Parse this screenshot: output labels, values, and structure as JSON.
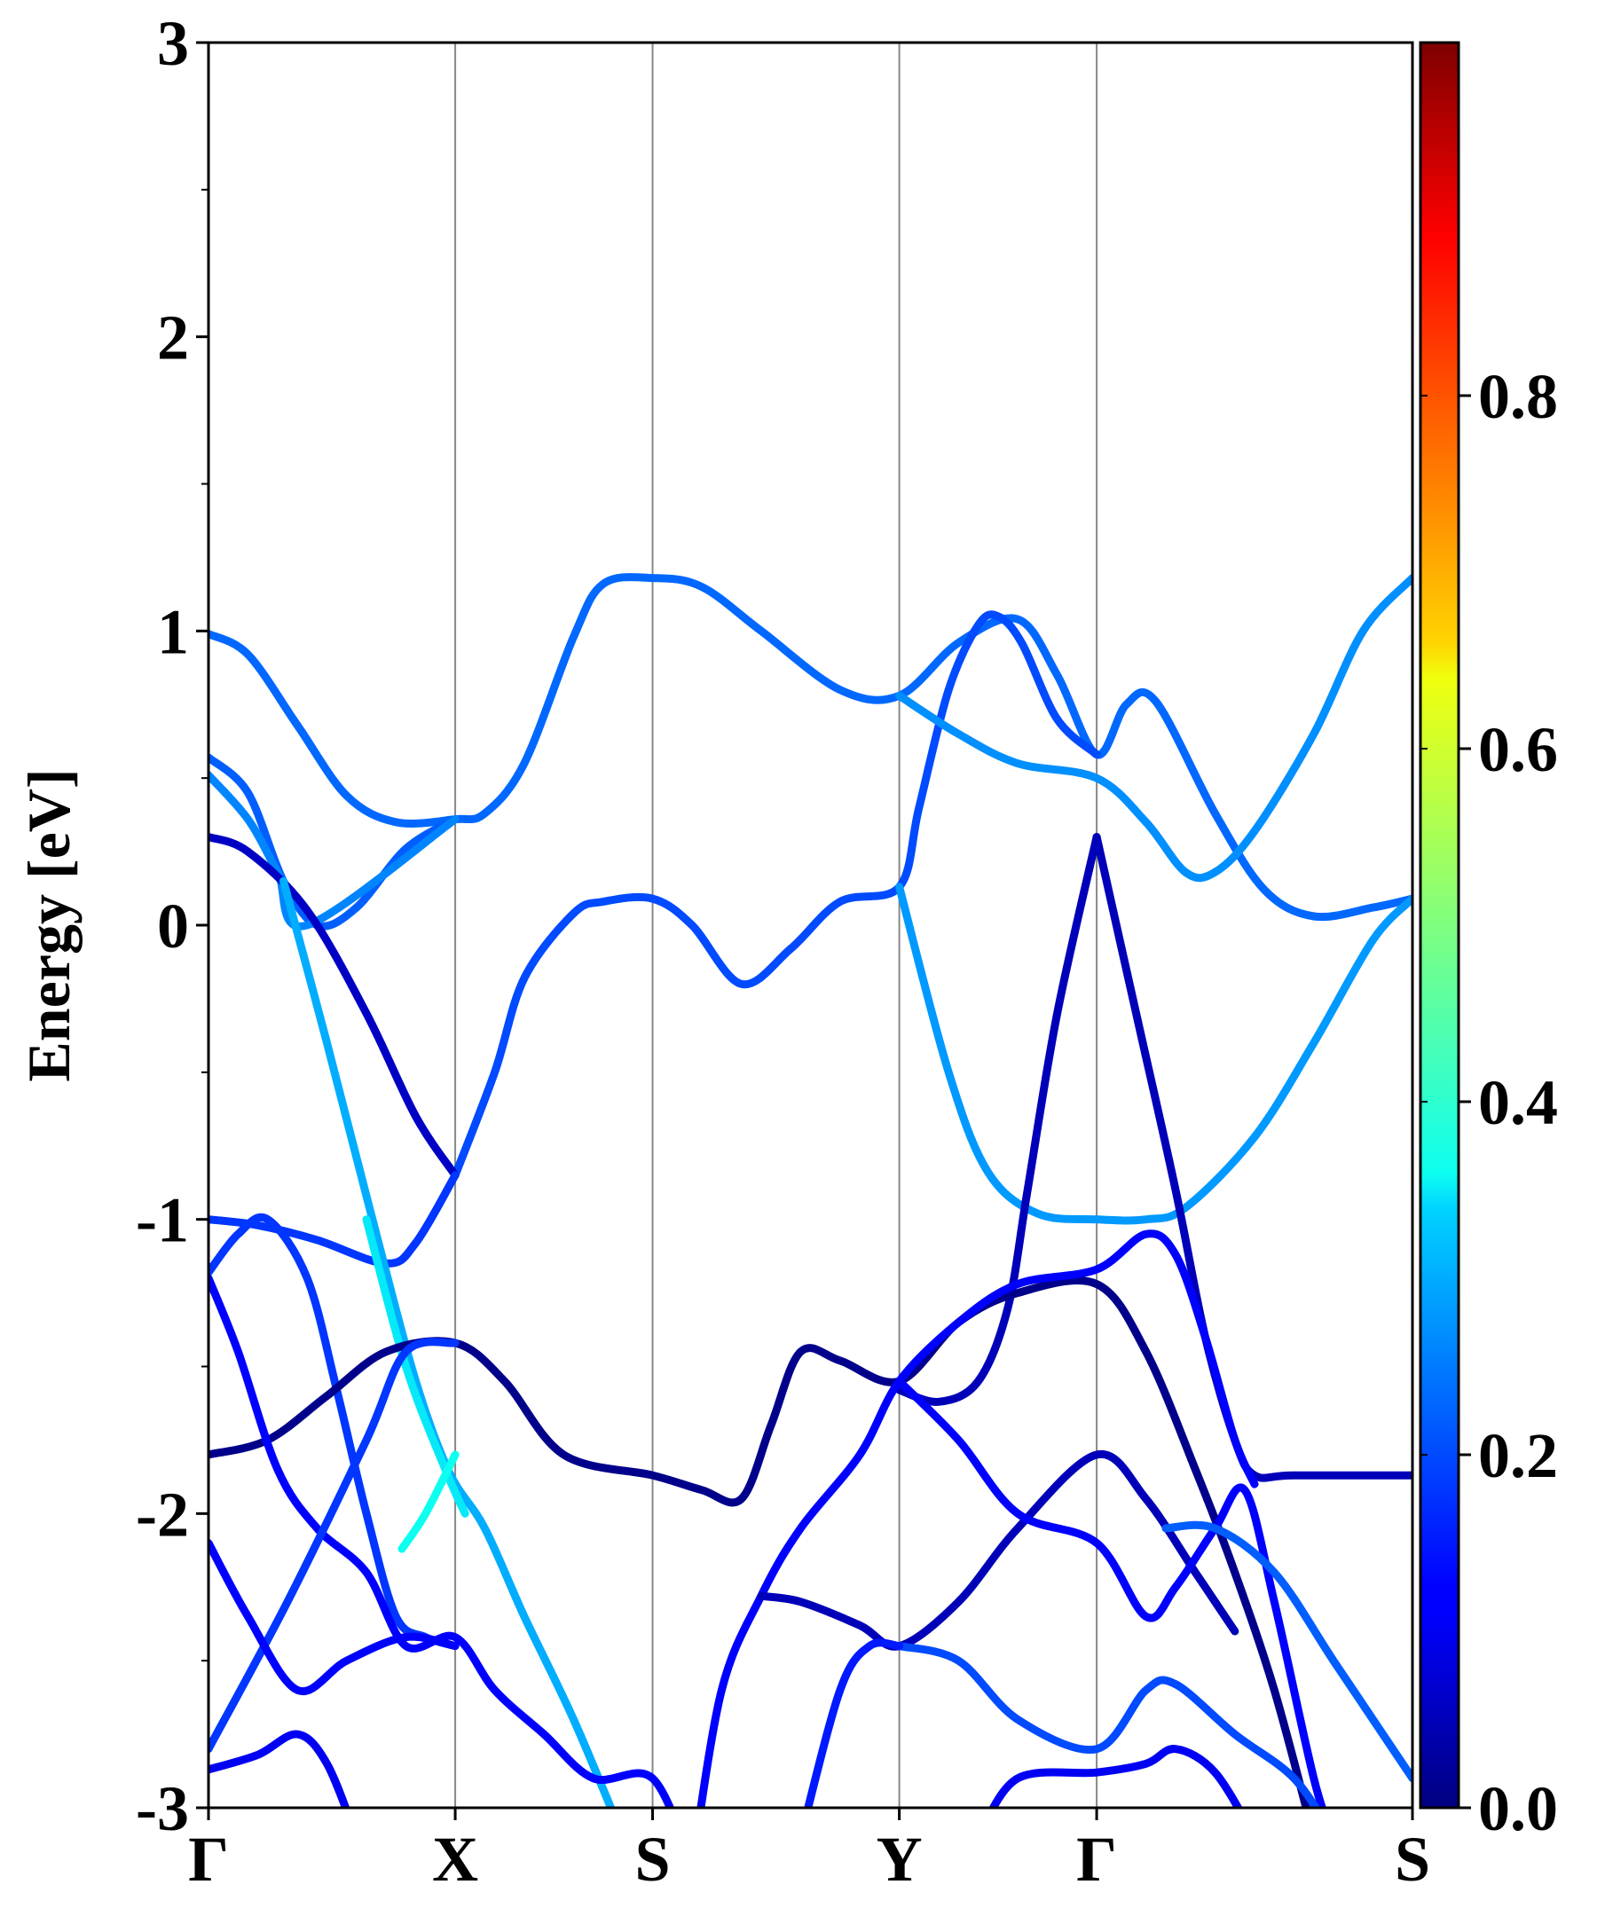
{
  "chart_data": {
    "type": "line",
    "title": "",
    "xlabel": "",
    "ylabel": "Energy [eV]",
    "ylim": [
      -3,
      3
    ],
    "y_ticks": [
      "-3",
      "-2",
      "-1",
      "0",
      "1",
      "2",
      "3"
    ],
    "y_tick_values": [
      -3,
      -2,
      -1,
      0,
      1,
      2,
      3
    ],
    "y_minor_ticks": [
      -2.5,
      -1.5,
      -0.5,
      0.5,
      1.5,
      2.5
    ],
    "kpoint_labels": [
      "Γ",
      "X",
      "S",
      "Y",
      "Γ",
      "S"
    ],
    "kpoint_positions": [
      0,
      1.25,
      2.25,
      3.5,
      4.5,
      6.1
    ],
    "colorbar": {
      "colormap": "jet",
      "range": [
        0,
        1
      ],
      "ticks": [
        "0.0",
        "0.2",
        "0.4",
        "0.6",
        "0.8"
      ],
      "tick_values": [
        0.0,
        0.2,
        0.4,
        0.6,
        0.8
      ]
    },
    "bands": [
      {
        "color_value": 0.23,
        "points": [
          [
            0,
            0.99
          ],
          [
            0.2,
            0.92
          ],
          [
            0.45,
            0.68
          ],
          [
            0.7,
            0.44
          ],
          [
            0.95,
            0.35
          ],
          [
            1.25,
            0.36
          ],
          [
            1.4,
            0.38
          ],
          [
            1.6,
            0.55
          ],
          [
            1.85,
            0.98
          ],
          [
            2.0,
            1.16
          ],
          [
            2.25,
            1.18
          ],
          [
            2.5,
            1.15
          ],
          [
            2.8,
            1.0
          ],
          [
            3.2,
            0.8
          ],
          [
            3.5,
            0.78
          ],
          [
            3.8,
            0.96
          ],
          [
            4.1,
            1.04
          ],
          [
            4.3,
            0.85
          ],
          [
            4.5,
            0.58
          ],
          [
            4.65,
            0.75
          ],
          [
            4.8,
            0.76
          ],
          [
            5.1,
            0.38
          ],
          [
            5.35,
            0.12
          ],
          [
            5.6,
            0.03
          ],
          [
            5.9,
            0.06
          ],
          [
            6.1,
            0.09
          ]
        ]
      },
      {
        "color_value": 0.22,
        "points": [
          [
            0,
            0.57
          ],
          [
            0.2,
            0.45
          ],
          [
            0.38,
            0.15
          ],
          [
            0.55,
            0.0
          ],
          [
            0.75,
            0.06
          ],
          [
            1.0,
            0.26
          ],
          [
            1.25,
            0.36
          ]
        ]
      },
      {
        "color_value": 0.26,
        "points": [
          [
            0,
            0.51
          ],
          [
            0.2,
            0.36
          ],
          [
            0.35,
            0.18
          ],
          [
            0.5,
            0.0
          ],
          [
            1.25,
            0.36
          ]
        ]
      },
      {
        "color_value": 0.2,
        "points": [
          [
            1.25,
            -0.85
          ],
          [
            1.45,
            -0.5
          ],
          [
            1.6,
            -0.18
          ],
          [
            1.85,
            0.04
          ],
          [
            2.0,
            0.08
          ],
          [
            2.25,
            0.09
          ],
          [
            2.45,
            0.0
          ],
          [
            2.7,
            -0.2
          ],
          [
            2.95,
            -0.08
          ],
          [
            3.2,
            0.08
          ],
          [
            3.5,
            0.13
          ],
          [
            3.6,
            0.4
          ],
          [
            3.75,
            0.8
          ],
          [
            3.9,
            1.02
          ],
          [
            4.0,
            1.05
          ],
          [
            4.12,
            0.96
          ],
          [
            4.3,
            0.7
          ],
          [
            4.5,
            0.58
          ]
        ]
      },
      {
        "color_value": 0.27,
        "points": [
          [
            3.5,
            0.78
          ],
          [
            3.8,
            0.65
          ],
          [
            4.1,
            0.55
          ],
          [
            4.5,
            0.5
          ],
          [
            4.75,
            0.35
          ],
          [
            4.95,
            0.18
          ],
          [
            5.1,
            0.18
          ],
          [
            5.3,
            0.32
          ],
          [
            5.6,
            0.65
          ],
          [
            5.85,
            1.0
          ],
          [
            6.1,
            1.18
          ]
        ]
      },
      {
        "color_value": 0.28,
        "points": [
          [
            3.5,
            0.13
          ],
          [
            3.75,
            -0.5
          ],
          [
            3.95,
            -0.84
          ],
          [
            4.2,
            -0.98
          ],
          [
            4.5,
            -1.0
          ],
          [
            4.75,
            -1.0
          ],
          [
            4.95,
            -0.96
          ],
          [
            5.3,
            -0.72
          ],
          [
            5.6,
            -0.4
          ],
          [
            5.9,
            -0.05
          ],
          [
            6.1,
            0.09
          ]
        ]
      },
      {
        "color_value": 0.06,
        "points": [
          [
            0,
            0.3
          ],
          [
            0.2,
            0.25
          ],
          [
            0.5,
            0.05
          ],
          [
            0.8,
            -0.3
          ],
          [
            1.05,
            -0.65
          ],
          [
            1.25,
            -0.85
          ]
        ]
      },
      {
        "color_value": 0.18,
        "points": [
          [
            0,
            -1.0
          ],
          [
            0.25,
            -1.02
          ],
          [
            0.55,
            -1.07
          ],
          [
            0.9,
            -1.15
          ],
          [
            1.05,
            -1.08
          ],
          [
            1.25,
            -0.85
          ]
        ]
      },
      {
        "color_value": 0.3,
        "points": [
          [
            0.38,
            0.15
          ],
          [
            0.6,
            -0.4
          ],
          [
            0.85,
            -1.05
          ],
          [
            1.05,
            -1.55
          ],
          [
            1.22,
            -1.86
          ],
          [
            1.4,
            -2.05
          ],
          [
            1.6,
            -2.35
          ],
          [
            1.85,
            -2.7
          ],
          [
            2.1,
            -3.1
          ]
        ]
      },
      {
        "color_value": 0.35,
        "points": [
          [
            0.8,
            -1.0
          ],
          [
            1.0,
            -1.5
          ],
          [
            1.2,
            -1.85
          ],
          [
            1.3,
            -2.0
          ]
        ]
      },
      {
        "color_value": 0.36,
        "points": [
          [
            0.98,
            -2.12
          ],
          [
            1.1,
            -2.0
          ],
          [
            1.25,
            -1.8
          ]
        ]
      },
      {
        "color_value": 0.05,
        "points": [
          [
            4.5,
            0.3
          ],
          [
            4.3,
            -0.3
          ],
          [
            4.15,
            -0.9
          ],
          [
            4.05,
            -1.3
          ],
          [
            3.9,
            -1.55
          ],
          [
            3.7,
            -1.62
          ],
          [
            3.5,
            -1.58
          ]
        ]
      },
      {
        "color_value": 0.05,
        "points": [
          [
            4.5,
            0.3
          ],
          [
            4.7,
            -0.3
          ],
          [
            4.9,
            -0.9
          ],
          [
            5.05,
            -1.4
          ],
          [
            5.2,
            -1.75
          ],
          [
            5.3,
            -1.87
          ],
          [
            5.5,
            -1.87
          ],
          [
            6.1,
            -1.87
          ]
        ]
      },
      {
        "color_value": 0.18,
        "points": [
          [
            0,
            -1.18
          ],
          [
            0.15,
            -1.05
          ],
          [
            0.3,
            -1.0
          ],
          [
            0.5,
            -1.2
          ],
          [
            0.65,
            -1.58
          ],
          [
            0.8,
            -2.0
          ],
          [
            0.95,
            -2.35
          ],
          [
            1.1,
            -2.42
          ],
          [
            1.25,
            -2.45
          ]
        ]
      },
      {
        "color_value": 0.01,
        "points": [
          [
            0,
            -1.8
          ],
          [
            0.3,
            -1.75
          ],
          [
            0.6,
            -1.6
          ],
          [
            0.9,
            -1.45
          ],
          [
            1.25,
            -1.42
          ],
          [
            1.5,
            -1.55
          ],
          [
            1.8,
            -1.8
          ],
          [
            2.25,
            -1.87
          ],
          [
            2.5,
            -1.92
          ],
          [
            2.7,
            -1.95
          ],
          [
            2.85,
            -1.7
          ],
          [
            3.0,
            -1.45
          ],
          [
            3.2,
            -1.48
          ],
          [
            3.5,
            -1.55
          ],
          [
            3.8,
            -1.35
          ],
          [
            4.1,
            -1.25
          ],
          [
            4.5,
            -1.22
          ],
          [
            4.75,
            -1.45
          ],
          [
            5.0,
            -1.85
          ],
          [
            5.2,
            -2.2
          ],
          [
            5.4,
            -2.6
          ],
          [
            5.6,
            -3.1
          ]
        ]
      },
      {
        "color_value": 0.12,
        "points": [
          [
            0,
            -1.2
          ],
          [
            0.15,
            -1.45
          ],
          [
            0.35,
            -1.85
          ],
          [
            0.55,
            -2.05
          ],
          [
            0.8,
            -2.2
          ],
          [
            1.0,
            -2.45
          ],
          [
            1.25,
            -2.42
          ],
          [
            1.45,
            -2.6
          ],
          [
            1.7,
            -2.75
          ],
          [
            1.95,
            -2.9
          ],
          [
            2.25,
            -2.9
          ],
          [
            2.45,
            -3.2
          ]
        ]
      },
      {
        "color_value": 0.18,
        "points": [
          [
            0,
            -2.8
          ],
          [
            0.4,
            -2.3
          ],
          [
            0.8,
            -1.75
          ],
          [
            1.0,
            -1.45
          ],
          [
            1.25,
            -1.42
          ]
        ]
      },
      {
        "color_value": 0.12,
        "points": [
          [
            0,
            -2.1
          ],
          [
            0.2,
            -2.35
          ],
          [
            0.45,
            -2.6
          ],
          [
            0.7,
            -2.5
          ],
          [
            1.0,
            -2.42
          ],
          [
            1.25,
            -2.45
          ]
        ]
      },
      {
        "color_value": 0.12,
        "points": [
          [
            2.45,
            -3.2
          ],
          [
            2.6,
            -2.6
          ],
          [
            2.8,
            -2.28
          ],
          [
            3.0,
            -2.05
          ],
          [
            3.3,
            -1.8
          ],
          [
            3.5,
            -1.55
          ],
          [
            3.8,
            -1.35
          ],
          [
            4.1,
            -1.22
          ],
          [
            4.5,
            -1.17
          ],
          [
            4.75,
            -1.05
          ],
          [
            4.9,
            -1.12
          ],
          [
            5.05,
            -1.4
          ],
          [
            5.2,
            -1.75
          ],
          [
            5.3,
            -1.9
          ]
        ]
      },
      {
        "color_value": 0.05,
        "points": [
          [
            2.8,
            -2.28
          ],
          [
            3.0,
            -2.3
          ],
          [
            3.3,
            -2.38
          ],
          [
            3.5,
            -2.45
          ],
          [
            3.8,
            -2.3
          ],
          [
            4.1,
            -2.05
          ],
          [
            4.5,
            -1.8
          ],
          [
            4.75,
            -1.95
          ],
          [
            5.0,
            -2.2
          ],
          [
            5.2,
            -2.4
          ]
        ]
      },
      {
        "color_value": 0.12,
        "points": [
          [
            3.5,
            -1.55
          ],
          [
            3.8,
            -1.75
          ],
          [
            4.1,
            -2.0
          ],
          [
            4.5,
            -2.1
          ],
          [
            4.75,
            -2.35
          ],
          [
            4.9,
            -2.25
          ],
          [
            5.1,
            -2.05
          ],
          [
            5.25,
            -1.92
          ],
          [
            5.4,
            -2.3
          ],
          [
            5.6,
            -2.9
          ],
          [
            5.7,
            -3.1
          ]
        ]
      },
      {
        "color_value": 0.2,
        "points": [
          [
            3.5,
            -2.45
          ],
          [
            3.8,
            -2.5
          ],
          [
            4.1,
            -2.7
          ],
          [
            4.5,
            -2.8
          ],
          [
            4.75,
            -2.6
          ],
          [
            4.9,
            -2.58
          ],
          [
            5.2,
            -2.75
          ],
          [
            5.5,
            -2.9
          ],
          [
            5.7,
            -3.1
          ]
        ]
      },
      {
        "color_value": 0.15,
        "points": [
          [
            3.0,
            -3.1
          ],
          [
            3.2,
            -2.6
          ],
          [
            3.35,
            -2.45
          ],
          [
            3.5,
            -2.45
          ]
        ]
      },
      {
        "color_value": 0.22,
        "points": [
          [
            4.85,
            -2.05
          ],
          [
            5.1,
            -2.05
          ],
          [
            5.4,
            -2.2
          ],
          [
            5.7,
            -2.5
          ],
          [
            6.0,
            -2.8
          ],
          [
            6.1,
            -2.9
          ]
        ]
      },
      {
        "color_value": 0.1,
        "points": [
          [
            0,
            -2.87
          ],
          [
            0.25,
            -2.82
          ],
          [
            0.45,
            -2.75
          ],
          [
            0.6,
            -2.85
          ],
          [
            0.75,
            -3.1
          ]
        ]
      },
      {
        "color_value": 0.1,
        "points": [
          [
            3.9,
            -3.1
          ],
          [
            4.1,
            -2.9
          ],
          [
            4.5,
            -2.88
          ],
          [
            4.75,
            -2.85
          ],
          [
            4.9,
            -2.8
          ],
          [
            5.1,
            -2.88
          ],
          [
            5.3,
            -3.1
          ]
        ]
      }
    ]
  }
}
